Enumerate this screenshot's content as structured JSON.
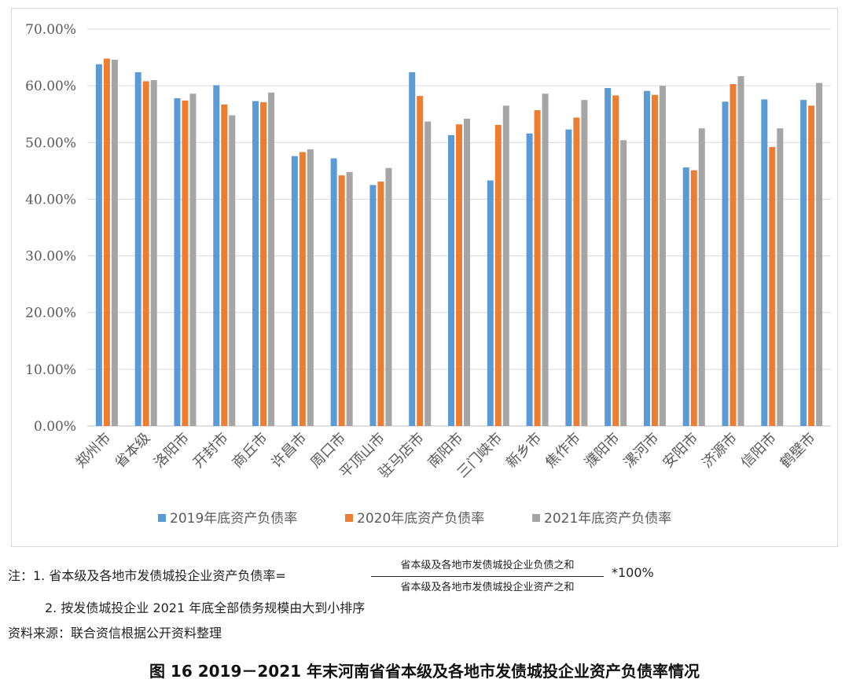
{
  "chart_data": {
    "type": "bar",
    "title": "",
    "xlabel": "",
    "ylabel": "",
    "ylim": [
      0,
      70
    ],
    "yticks": [
      "0.00%",
      "10.00%",
      "20.00%",
      "30.00%",
      "40.00%",
      "50.00%",
      "60.00%",
      "70.00%"
    ],
    "grid": true,
    "legend_position": "bottom",
    "categories": [
      "郑州市",
      "省本级",
      "洛阳市",
      "开封市",
      "商丘市",
      "许昌市",
      "周口市",
      "平顶山市",
      "驻马店市",
      "南阳市",
      "三门峡市",
      "新乡市",
      "焦作市",
      "濮阳市",
      "漯河市",
      "安阳市",
      "济源市",
      "信阳市",
      "鹤壁市"
    ],
    "series": [
      {
        "name": "2019年底资产负债率",
        "color": "#5B9BD5",
        "values": [
          63.8,
          62.4,
          57.8,
          60.1,
          57.3,
          47.6,
          47.2,
          42.5,
          62.4,
          51.3,
          43.3,
          51.6,
          52.3,
          59.6,
          59.1,
          45.6,
          57.2,
          57.6,
          57.5
        ]
      },
      {
        "name": "2020年底资产负债率",
        "color": "#ED7D31",
        "values": [
          64.8,
          60.8,
          57.4,
          56.7,
          57.1,
          48.3,
          44.2,
          43.1,
          58.2,
          53.2,
          53.1,
          55.7,
          54.4,
          58.3,
          58.4,
          45.1,
          60.3,
          49.2,
          56.5
        ]
      },
      {
        "name": "2021年底资产负债率",
        "color": "#A5A5A5",
        "values": [
          64.6,
          61.0,
          58.6,
          54.8,
          58.8,
          48.8,
          44.8,
          45.5,
          53.7,
          54.2,
          56.5,
          58.6,
          57.5,
          50.4,
          60.0,
          52.5,
          61.7,
          52.5,
          60.5
        ]
      }
    ]
  },
  "notes": {
    "line1_prefix": "注：1. 省本级及各地市发债城投企业资产负债率=",
    "numerator": "省本级及各地市发债城投企业负债之和",
    "denominator": "省本级及各地市发债城投企业资产之和",
    "line1_suffix": "*100%",
    "line2": "2. 按发债城投企业 2021 年底全部债务规模由大到小排序",
    "source": "资料来源：联合资信根据公开资料整理"
  },
  "figure_title": "图 16    2019－2021 年末河南省省本级及各地市发债城投企业资产负债率情况"
}
